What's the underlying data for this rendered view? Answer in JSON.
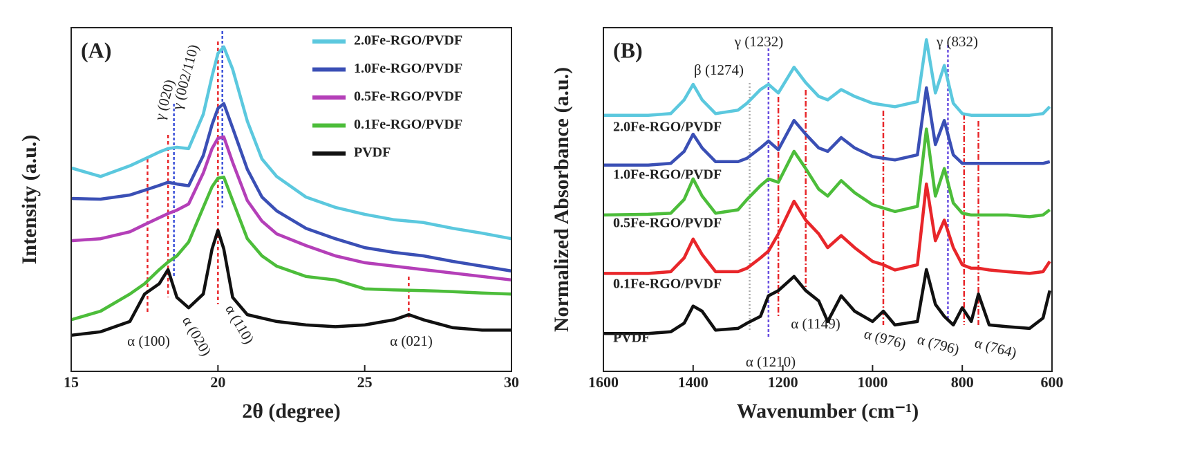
{
  "chart_data": [
    {
      "type": "line",
      "panel_label": "(A)",
      "x_label": "2θ (degree)",
      "y_label": "Intensity (a.u.)",
      "xlim": [
        15,
        30
      ],
      "xticks": [
        15,
        20,
        25,
        30
      ],
      "ylim": [
        0,
        100
      ],
      "legend": "upper right",
      "x": [
        15,
        16,
        17,
        17.5,
        18,
        18.3,
        18.6,
        19,
        19.5,
        19.8,
        20,
        20.2,
        20.5,
        21,
        21.5,
        22,
        23,
        24,
        25,
        26,
        26.5,
        27,
        28,
        29,
        30
      ],
      "series": [
        {
          "name": "2.0Fe-RGO/PVDF",
          "color": "#5bc8de",
          "values": [
            59.2,
            56.7,
            59.8,
            61.8,
            63.8,
            64.8,
            65.2,
            64.8,
            74.8,
            85.9,
            92.5,
            94.4,
            87.9,
            72.8,
            61.8,
            56.7,
            50.7,
            47.7,
            45.7,
            44.1,
            43.7,
            43.3,
            41.6,
            40.2,
            38.6
          ]
        },
        {
          "name": "1.0Fe-RGO/PVDF",
          "color": "#3a4fb5",
          "values": [
            50.3,
            50.1,
            51.3,
            52.7,
            54.1,
            55.0,
            54.5,
            54.0,
            62.8,
            71.8,
            76.5,
            77.9,
            70.8,
            58.8,
            50.7,
            46.7,
            41.6,
            38.6,
            36.0,
            34.6,
            34.1,
            33.6,
            32.0,
            30.6,
            29.2
          ]
        },
        {
          "name": "0.5Fe-RGO/PVDF",
          "color": "#b43fb8",
          "values": [
            38.0,
            38.6,
            40.6,
            42.7,
            44.7,
            45.9,
            46.9,
            48.7,
            57.7,
            64.8,
            67.8,
            68.2,
            60.8,
            49.7,
            43.7,
            40.0,
            36.6,
            33.6,
            31.6,
            30.6,
            30.1,
            29.6,
            28.6,
            27.6,
            26.6
          ]
        },
        {
          "name": "0.1Fe-RGO/PVDF",
          "color": "#4cbd3a",
          "values": [
            15.0,
            17.5,
            22.5,
            25.5,
            29.6,
            31.8,
            33.6,
            37.6,
            47.7,
            53.7,
            56.2,
            56.5,
            49.7,
            38.6,
            33.6,
            30.6,
            27.6,
            26.6,
            24.0,
            23.7,
            23.6,
            23.5,
            23.2,
            22.8,
            22.5
          ]
        },
        {
          "name": "PVDF",
          "color": "#111111",
          "values": [
            10.5,
            11.5,
            14.5,
            22.5,
            25.5,
            29.6,
            21.5,
            18.5,
            22.5,
            35.6,
            41.0,
            35.6,
            21.5,
            16.5,
            15.5,
            14.5,
            13.5,
            13.0,
            13.5,
            15.0,
            16.5,
            15.0,
            12.7,
            12.0,
            12.0
          ]
        }
      ],
      "annotations": [
        {
          "text": "α (100)",
          "x": 17.6,
          "color": "#e8262a"
        },
        {
          "text": "α (020)",
          "x": 18.3,
          "color": "#e8262a"
        },
        {
          "text": "α (110)",
          "x": 20.0,
          "color": "#e8262a"
        },
        {
          "text": "α (021)",
          "x": 26.5,
          "color": "#e8262a"
        },
        {
          "text": "γ (020)",
          "x": 18.5,
          "color": "#3a4fd8"
        },
        {
          "text": "γ (002/110)",
          "x": 20.15,
          "color": "#3a4fd8"
        }
      ]
    },
    {
      "type": "line",
      "panel_label": "(B)",
      "x_label": "Wavenumber (cm⁻¹)",
      "y_label": "Normalized Absorbance (a.u.)",
      "xlim": [
        1600,
        600
      ],
      "xticks": [
        1600,
        1400,
        1200,
        1000,
        800,
        600
      ],
      "ylim": [
        0,
        100
      ],
      "legend": "inline",
      "x": [
        1600,
        1500,
        1450,
        1420,
        1400,
        1380,
        1350,
        1300,
        1280,
        1250,
        1232,
        1210,
        1175,
        1149,
        1120,
        1100,
        1070,
        1040,
        1000,
        976,
        950,
        900,
        880,
        860,
        840,
        820,
        800,
        780,
        764,
        740,
        700,
        650,
        620,
        605
      ],
      "series": [
        {
          "name": "2.0Fe-RGO/PVDF",
          "color": "#5bc8de",
          "values": [
            74.5,
            74.5,
            75,
            79,
            83.5,
            79,
            75,
            76,
            78,
            82,
            83.5,
            81,
            88.5,
            84,
            80,
            79,
            82,
            80,
            78,
            77.5,
            77,
            78.5,
            96.5,
            81,
            89,
            78,
            75,
            74.5,
            74.5,
            74.5,
            74.5,
            74.5,
            75,
            77
          ]
        },
        {
          "name": "1.0Fe-RGO/PVDF",
          "color": "#3a4fb5",
          "values": [
            60,
            60,
            60.5,
            64,
            69,
            65,
            61,
            61,
            62,
            65,
            67,
            64.5,
            73,
            69,
            65,
            64,
            68,
            65,
            62.5,
            62,
            61.5,
            63,
            82.5,
            66,
            73,
            63,
            60.5,
            60.5,
            60.5,
            60.5,
            60.5,
            60.5,
            60.5,
            61
          ]
        },
        {
          "name": "0.5Fe-RGO/PVDF",
          "color": "#4cbd3a",
          "values": [
            45.5,
            45.7,
            46,
            50,
            56,
            51,
            46,
            47,
            50,
            54,
            56,
            55,
            64,
            59,
            53,
            51,
            55.5,
            52,
            48.5,
            47.5,
            46.5,
            48,
            70.5,
            51,
            59,
            49,
            46,
            45.5,
            45.5,
            45.5,
            45.5,
            45,
            45.5,
            47
          ]
        },
        {
          "name": "0.1Fe-RGO/PVDF",
          "color": "#e8262a",
          "values": [
            28.5,
            28.5,
            29,
            33,
            38.5,
            34,
            29,
            29,
            30,
            33,
            35,
            40,
            49.5,
            44,
            40,
            36,
            39.5,
            36,
            32,
            31,
            29.5,
            31,
            54.5,
            38,
            44,
            36,
            31,
            30,
            30,
            29.5,
            29,
            28.5,
            29,
            32
          ]
        },
        {
          "name": "PVDF",
          "color": "#111111",
          "values": [
            11,
            11,
            11.5,
            14,
            19,
            17.5,
            12,
            12.5,
            14,
            16,
            22,
            23.5,
            27.6,
            23.5,
            20.5,
            14.5,
            22,
            17.5,
            14.5,
            17.5,
            13.5,
            14.5,
            29.6,
            19.5,
            16,
            13.5,
            18.5,
            14.5,
            22.5,
            13.5,
            13,
            12.5,
            15.5,
            23.5
          ]
        }
      ],
      "annotations": [
        {
          "text": "β (1274)",
          "x": 1274,
          "color": "#aaaaaa"
        },
        {
          "text": "γ (1232)",
          "x": 1232,
          "color": "#6a4fe0"
        },
        {
          "text": "α (1210)",
          "x": 1210,
          "color": "#e8262a"
        },
        {
          "text": "α (1149)",
          "x": 1149,
          "color": "#e8262a"
        },
        {
          "text": "α (976)",
          "x": 976,
          "color": "#e8262a"
        },
        {
          "text": "γ (832)",
          "x": 832,
          "color": "#6a4fe0"
        },
        {
          "text": "α (796)",
          "x": 796,
          "color": "#e8262a"
        },
        {
          "text": "α (764)",
          "x": 764,
          "color": "#e8262a"
        }
      ]
    }
  ]
}
